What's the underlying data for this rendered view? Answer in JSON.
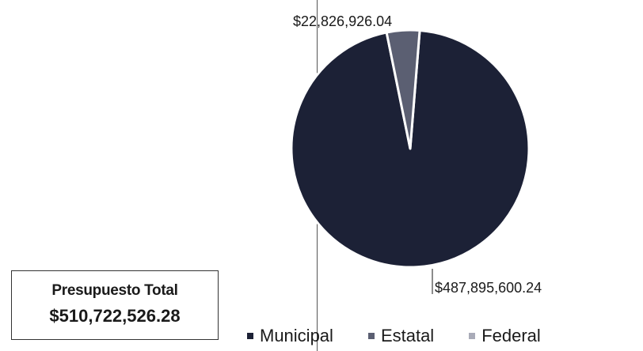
{
  "chart_data": {
    "type": "pie",
    "categories": [
      "Municipal",
      "Estatal",
      "Federal"
    ],
    "values": [
      487895600.24,
      22826926.04,
      0
    ],
    "data_labels": [
      "$487,895,600.24",
      "$22,826,926.04",
      ""
    ],
    "colors": [
      "#1c2136",
      "#5b5f72",
      "#a9abb8"
    ],
    "legend_position": "bottom"
  },
  "total_box": {
    "title": "Presupuesto Total",
    "value": "$510,722,526.28"
  },
  "legend": [
    {
      "label": "Municipal",
      "color": "#1c2136"
    },
    {
      "label": "Estatal",
      "color": "#5b5f72"
    },
    {
      "label": "Federal",
      "color": "#a9abb8"
    }
  ]
}
